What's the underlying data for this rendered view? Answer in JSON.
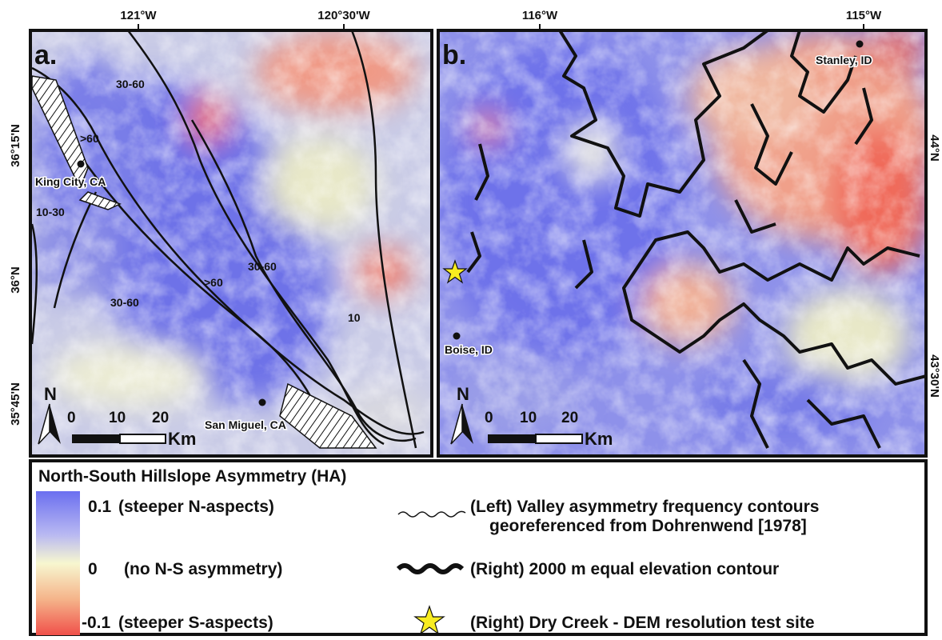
{
  "panel_a": {
    "label": "a.",
    "lon_ticks": [
      "121°W",
      "120°30'W"
    ],
    "lat_ticks": [
      "36°15'N",
      "36°N",
      "35°45'N"
    ],
    "contour_labels": [
      "30-60",
      ">60",
      "10-30",
      "30-60",
      ">60",
      "30-60",
      "10"
    ],
    "places": [
      "King City, CA",
      "San Miguel, CA"
    ],
    "north": "N",
    "scale": [
      "0",
      "10",
      "20"
    ],
    "scale_unit": "Km"
  },
  "panel_b": {
    "label": "b.",
    "lon_ticks": [
      "116°W",
      "115°W"
    ],
    "lat_ticks": [
      "44°N",
      "43°30'N"
    ],
    "places": [
      "Stanley, ID",
      "Boise, ID"
    ],
    "north": "N",
    "scale": [
      "0",
      "10",
      "20"
    ],
    "scale_unit": "Km"
  },
  "legend": {
    "title": "North-South Hillslope Asymmetry (HA)",
    "color_items": [
      {
        "value": "0.1",
        "label": "(steeper N-aspects)"
      },
      {
        "value": "0",
        "label": "(no N-S asymmetry)"
      },
      {
        "value": "-0.1",
        "label": "(steeper S-aspects)"
      }
    ],
    "symbol_items": [
      [
        "(Left) Valley asymmetry frequency contours",
        "georeferenced from Dohrenwend [1978]"
      ],
      [
        "(Right) 2000 m equal elevation contour"
      ],
      [
        "(Right) Dry Creek - DEM resolution test site"
      ]
    ]
  }
}
